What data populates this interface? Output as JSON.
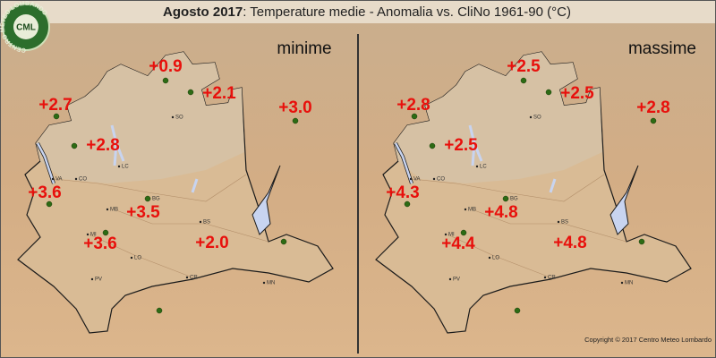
{
  "header": {
    "title_bold": "Agosto 2017",
    "title_rest": ": Temperature medie - Anomalia vs. CliNo 1961-90 (°C)"
  },
  "logo": {
    "abbr": "CML",
    "ring": "CENTRO METEO LOMBARDO"
  },
  "cities": [
    "SO",
    "LC",
    "CO",
    "VA",
    "BG",
    "MB",
    "BS",
    "MI",
    "LO",
    "CR",
    "PV",
    "MN"
  ],
  "panels": [
    {
      "label": "minime",
      "anomalies": [
        "+0.9",
        "+2.1",
        "+2.7",
        "+3.0",
        "+2.8",
        "+3.6",
        "+3.5",
        "+3.6",
        "+2.0"
      ]
    },
    {
      "label": "massime",
      "anomalies": [
        "+2.5",
        "+2.5",
        "+2.8",
        "+2.8",
        "+2.5",
        "+4.3",
        "+4.8",
        "+4.4",
        "+4.8"
      ]
    }
  ],
  "copyright": "Copyright © 2017 Centro Meteo Lombardo"
}
